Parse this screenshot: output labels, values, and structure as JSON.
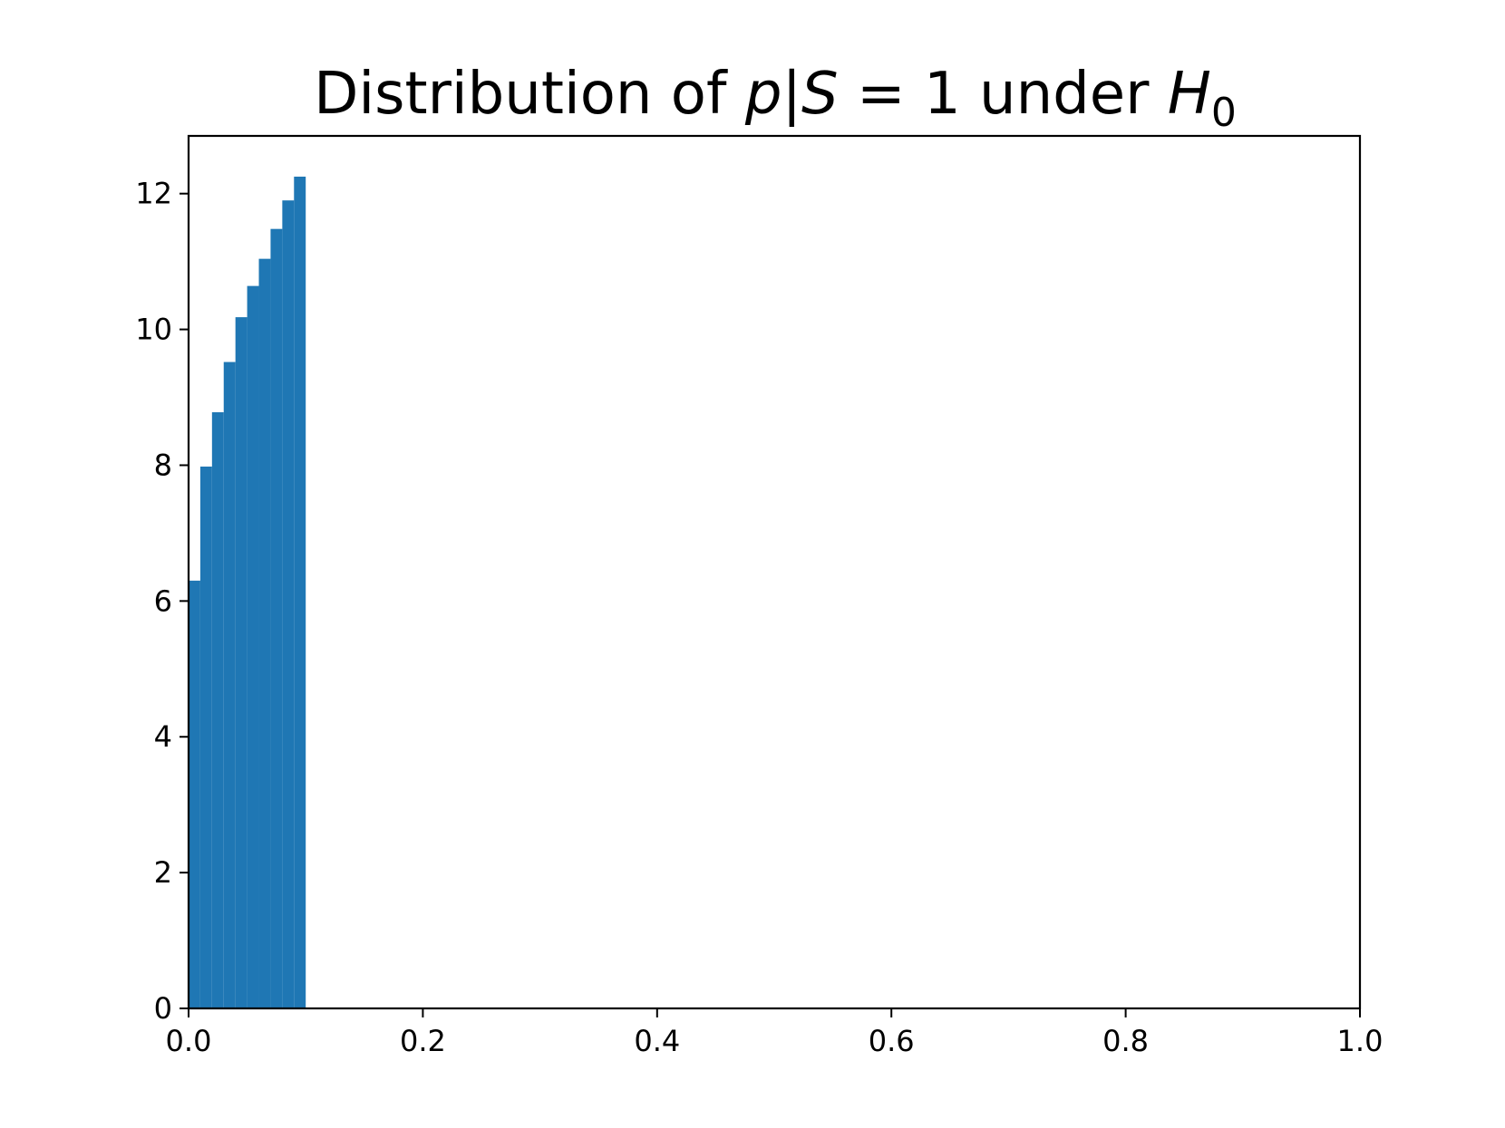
{
  "chart_data": {
    "type": "bar",
    "title": {
      "prefix": "Distribution of ",
      "math_var": "p",
      "separator": "|",
      "math_var2": "S",
      "equals": " = 1",
      "middle": " under ",
      "math_h": "H",
      "subscript": "0"
    },
    "xlabel": "",
    "ylabel": "",
    "xlim": [
      0.0,
      1.0
    ],
    "ylim": [
      0,
      12.85
    ],
    "xticks": [
      0.0,
      0.2,
      0.4,
      0.6,
      0.8,
      1.0
    ],
    "xtick_labels": [
      "0.0",
      "0.2",
      "0.4",
      "0.6",
      "0.8",
      "1.0"
    ],
    "yticks": [
      0,
      2,
      4,
      6,
      8,
      10,
      12
    ],
    "ytick_labels": [
      "0",
      "2",
      "4",
      "6",
      "8",
      "10",
      "12"
    ],
    "bin_edges": [
      0.0,
      0.01,
      0.02,
      0.03,
      0.04,
      0.05,
      0.06,
      0.07,
      0.08,
      0.09,
      0.1
    ],
    "values": [
      6.3,
      7.98,
      8.78,
      9.52,
      10.18,
      10.64,
      11.04,
      11.48,
      11.9,
      12.25
    ],
    "bar_color": "#1f77b4",
    "grid": false,
    "legend": "none"
  }
}
